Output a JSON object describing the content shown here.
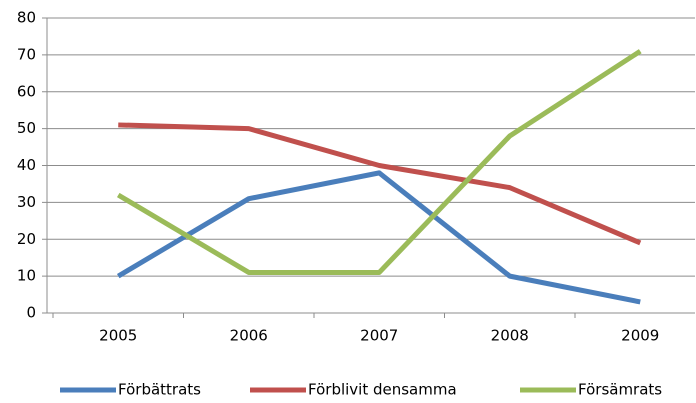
{
  "chart_data": {
    "type": "line",
    "categories": [
      "2005",
      "2006",
      "2007",
      "2008",
      "2009"
    ],
    "series": [
      {
        "name": "Förbättrats",
        "color": "#4a7ebb",
        "values": [
          10,
          31,
          38,
          10,
          3
        ]
      },
      {
        "name": "Förblivit densamma",
        "color": "#c0504d",
        "values": [
          51,
          50,
          40,
          34,
          19
        ]
      },
      {
        "name": "Försämrats",
        "color": "#9bbb59",
        "values": [
          32,
          11,
          11,
          48,
          71
        ]
      }
    ],
    "ylim": [
      0,
      80
    ],
    "yticks": [
      0,
      10,
      20,
      30,
      40,
      50,
      60,
      70,
      80
    ],
    "grid": true,
    "legend": "bottom"
  }
}
